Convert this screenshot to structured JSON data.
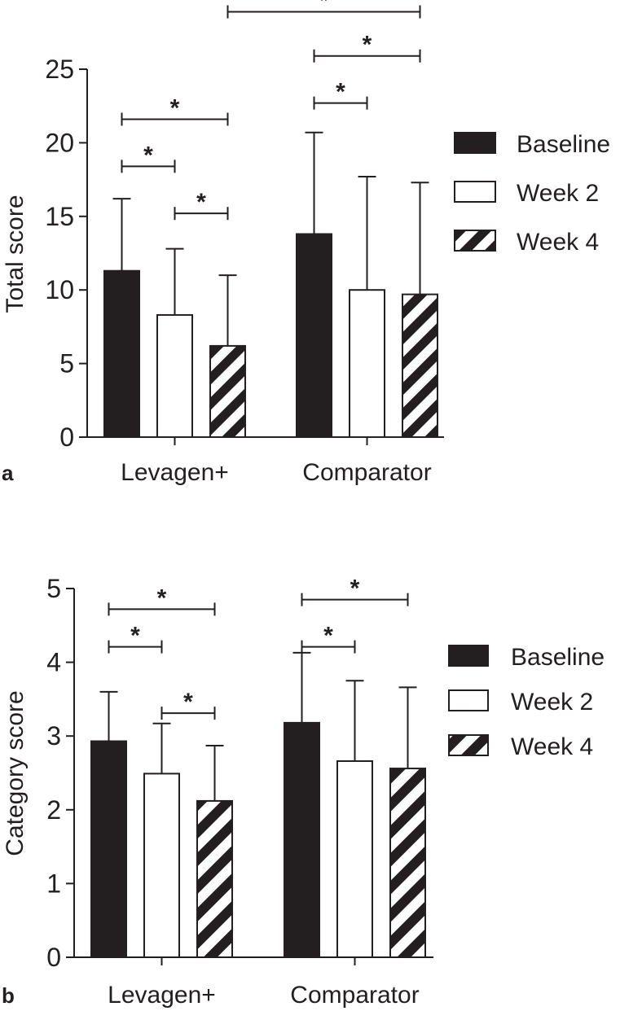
{
  "chart_data": [
    {
      "panel": "a",
      "type": "bar",
      "ylabel": "Total score",
      "xlabel": "",
      "ylim": [
        0,
        25
      ],
      "yticks": [
        0,
        5,
        10,
        15,
        20,
        25
      ],
      "categories": [
        "Levagen+",
        "Comparator"
      ],
      "series": [
        {
          "name": "Baseline",
          "values": [
            11.3,
            13.8
          ],
          "error_upper": [
            16.2,
            20.7
          ],
          "fill": "solid"
        },
        {
          "name": "Week 2",
          "values": [
            8.3,
            10.0
          ],
          "error_upper": [
            12.8,
            17.7
          ],
          "fill": "white"
        },
        {
          "name": "Week 4",
          "values": [
            6.2,
            9.7
          ],
          "error_upper": [
            11.0,
            17.3
          ],
          "fill": "hatch"
        }
      ],
      "significance": [
        {
          "group": 0,
          "from": 0,
          "to": 1,
          "y": 18.4,
          "label": "*"
        },
        {
          "group": 0,
          "from": 0,
          "to": 2,
          "y": 21.6,
          "label": "*"
        },
        {
          "group": 0,
          "from": 1,
          "to": 2,
          "y": 15.2,
          "label": "*"
        },
        {
          "group": 1,
          "from": 0,
          "to": 1,
          "y": 22.7,
          "label": "*"
        },
        {
          "group": 1,
          "from": 0,
          "to": 2,
          "y": 25.9,
          "label": "*"
        },
        {
          "cross": true,
          "fromGroup": 0,
          "fromBar": 2,
          "toGroup": 1,
          "toBar": 2,
          "y": 28.9,
          "label": "*"
        }
      ],
      "legend_position": "right"
    },
    {
      "panel": "b",
      "type": "bar",
      "ylabel": "Category score",
      "xlabel": "",
      "ylim": [
        0,
        5
      ],
      "yticks": [
        0,
        1,
        2,
        3,
        4,
        5
      ],
      "categories": [
        "Levagen+",
        "Comparator"
      ],
      "series": [
        {
          "name": "Baseline",
          "values": [
            2.93,
            3.18
          ],
          "error_upper": [
            3.6,
            4.13
          ],
          "fill": "solid"
        },
        {
          "name": "Week 2",
          "values": [
            2.49,
            2.66
          ],
          "error_upper": [
            3.17,
            3.75
          ],
          "fill": "white"
        },
        {
          "name": "Week 4",
          "values": [
            2.12,
            2.56
          ],
          "error_upper": [
            2.87,
            3.66
          ],
          "fill": "hatch"
        }
      ],
      "significance": [
        {
          "group": 0,
          "from": 0,
          "to": 1,
          "y": 4.21,
          "label": "*"
        },
        {
          "group": 0,
          "from": 0,
          "to": 2,
          "y": 4.72,
          "label": "*"
        },
        {
          "group": 0,
          "from": 1,
          "to": 2,
          "y": 3.31,
          "label": "*"
        },
        {
          "group": 1,
          "from": 0,
          "to": 1,
          "y": 4.21,
          "label": "*"
        },
        {
          "group": 1,
          "from": 0,
          "to": 2,
          "y": 4.85,
          "label": "*"
        }
      ],
      "legend_position": "right"
    }
  ],
  "colors": {
    "ink": "#231f20",
    "bar_solid": "#231f20",
    "bar_white": "#ffffff"
  }
}
